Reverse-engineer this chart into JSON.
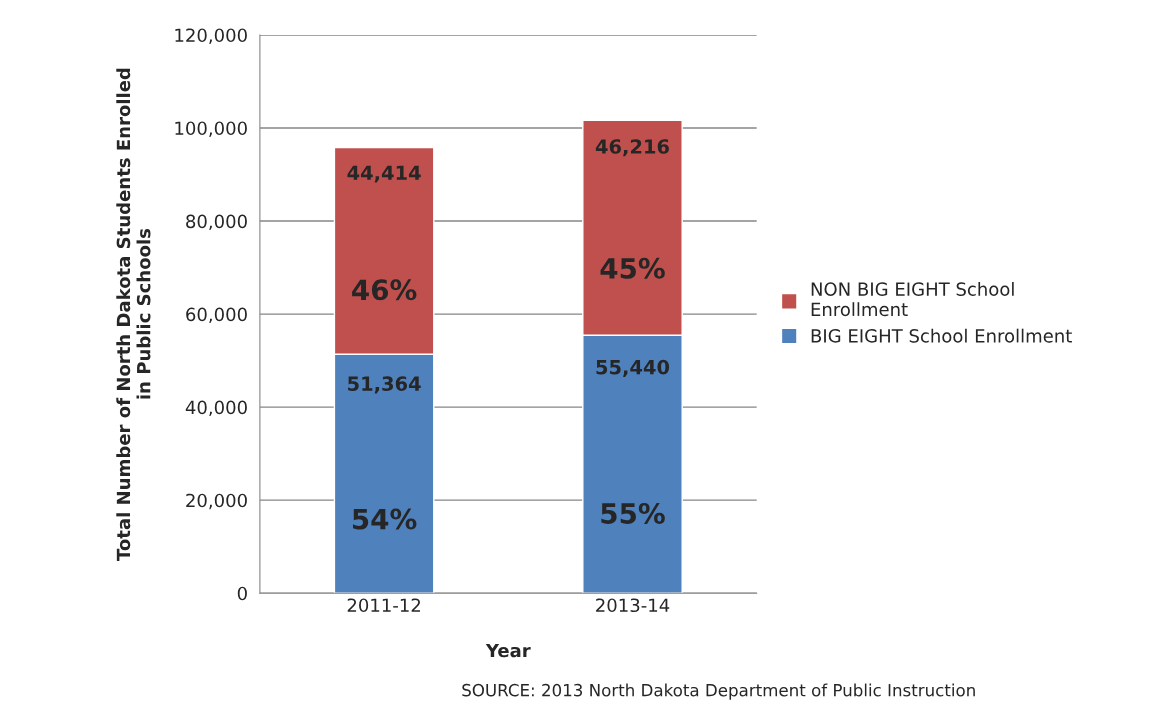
{
  "chart_data": {
    "type": "bar",
    "stacked": true,
    "categories": [
      "2011-12",
      "2013-14"
    ],
    "xlabel": "Year",
    "ylabel": "Total Number of North Dakota Students Enrolled\nin Public Schools",
    "series": [
      {
        "name": "BIG EIGHT School Enrollment",
        "color": "#4f81bd",
        "values": [
          51364,
          55440
        ],
        "value_labels": [
          "51,364",
          "55,440"
        ]
      },
      {
        "name": "NON BIG EIGHT School\nEnrollment",
        "color": "#c0504d",
        "values": [
          44414,
          46216
        ],
        "value_labels": [
          "44,414",
          "46,216"
        ]
      }
    ],
    "ylim": [
      0,
      120000
    ],
    "yticks": [
      {
        "value": 0,
        "label": "0"
      },
      {
        "value": 20000,
        "label": "20,000"
      },
      {
        "value": 40000,
        "label": "40,000"
      },
      {
        "value": 60000,
        "label": "60,000"
      },
      {
        "value": 80000,
        "label": "80,000"
      },
      {
        "value": 100000,
        "label": "100,000"
      },
      {
        "value": 120000,
        "label": "120,000"
      }
    ],
    "grid": "y",
    "legend": "right",
    "annotations": [
      "46%",
      "45%",
      "54%",
      "55%",
      "SOURCE: 2013 North Dakota Department of Public Instruction"
    ]
  }
}
